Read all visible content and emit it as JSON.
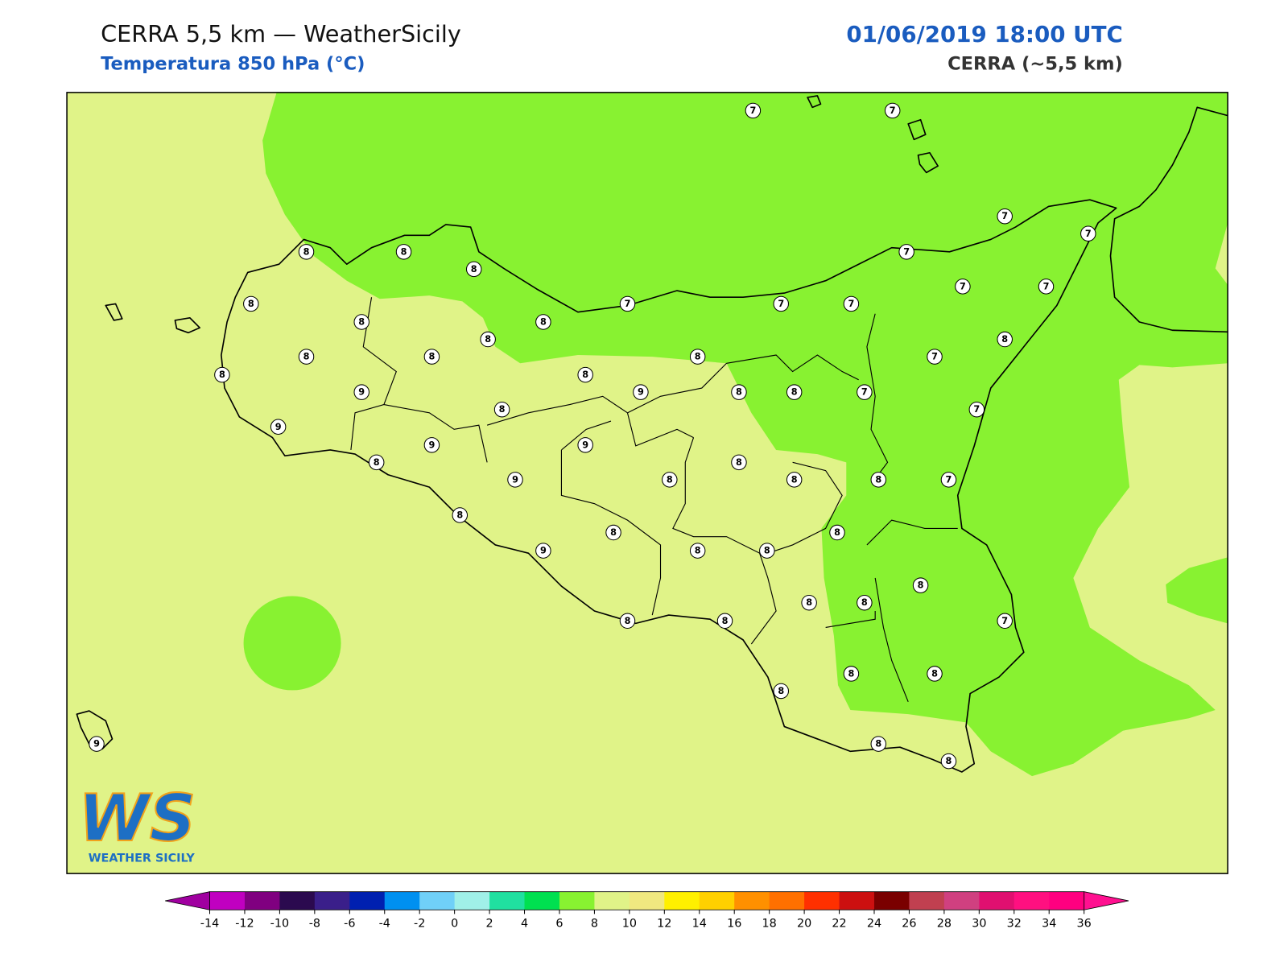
{
  "header": {
    "title": "CERRA 5,5 km — WeatherSicily",
    "subtitle": "Temperatura 850 hPa (°C)",
    "datetime": "01/06/2019 18:00 UTC",
    "model": "CERRA (~5,5 km)"
  },
  "stations": [
    7,
    7,
    8,
    8,
    8,
    8,
    7,
    7,
    7,
    7,
    7,
    7,
    7,
    7,
    8,
    8,
    8,
    8,
    8,
    8,
    8,
    7,
    8,
    8,
    9,
    9,
    8,
    8,
    7,
    8,
    7,
    9,
    9,
    9,
    8,
    8,
    9,
    8,
    8,
    8,
    7,
    8,
    8,
    8,
    9,
    8,
    8,
    8,
    8,
    8,
    7,
    8,
    8,
    8,
    8,
    8,
    9,
    8,
    8
  ],
  "colorbar": {
    "ticks": [
      -14,
      -12,
      -10,
      -8,
      -6,
      -4,
      -2,
      0,
      2,
      4,
      6,
      8,
      10,
      12,
      14,
      16,
      18,
      20,
      22,
      24,
      26,
      28,
      30,
      32,
      34,
      36
    ],
    "colors": [
      "#c000c0",
      "#800080",
      "#2b0a4f",
      "#3a1f8a",
      "#0020b0",
      "#0090f0",
      "#70d0f8",
      "#a0f0e8",
      "#20e0a0",
      "#00e050",
      "#88f231",
      "#e0f388",
      "#f0e880",
      "#fff000",
      "#ffd000",
      "#ff9000",
      "#ff7000",
      "#ff3000",
      "#cc1010",
      "#7a0000",
      "#c04050",
      "#d04080",
      "#e01070",
      "#ff1080",
      "#ff0080"
    ],
    "under_color": "#a000a0",
    "over_color": "#ff1090"
  },
  "logo": {
    "mark": "WS",
    "name": "WEATHER SICILY"
  }
}
